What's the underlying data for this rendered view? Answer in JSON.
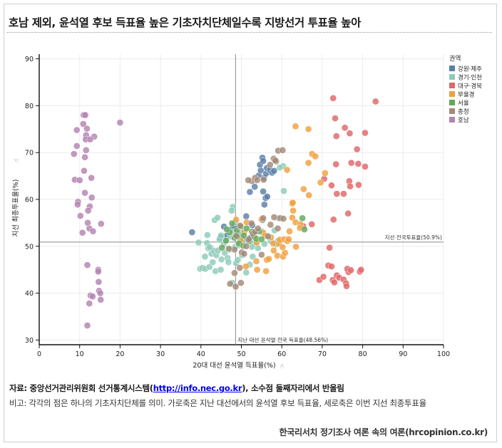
{
  "title": "호남 제외, 윤석열 후보 득표율 높은 기초자치단체일수록 지방선거 투표율 높아",
  "chart_data": {
    "type": "scatter",
    "title": "호남 제외, 윤석열 후보 득표율 높은 기초자치단체일수록 지방선거 투표율 높아",
    "xlabel": "20대 대선 윤석열 득표율(%)",
    "ylabel": "지선 최종투표율(%)",
    "xlim": [
      0,
      100
    ],
    "ylim": [
      29,
      91
    ],
    "xticks": [
      "0",
      "10",
      "20",
      "30",
      "40",
      "50",
      "60",
      "70",
      "80",
      "90",
      "100"
    ],
    "yticks": [
      "30",
      "40",
      "50",
      "60",
      "70",
      "80",
      "90"
    ],
    "grid": true,
    "legend_title": "권역",
    "legend_position": "top-right",
    "ref_lines": {
      "horizontal": {
        "value": 50.9,
        "label": "지선 전국투표율(50.9%)"
      },
      "vertical": {
        "value": 48.56,
        "label": "지난 대선 윤석열 전국 득표율(48.56%)"
      }
    },
    "series": [
      {
        "name": "강원·제주",
        "color": "#5a7fa8",
        "points": [
          [
            37.8,
            53
          ],
          [
            44.8,
            51.9
          ],
          [
            45.7,
            54.2
          ],
          [
            46.4,
            52.3
          ],
          [
            47.6,
            53.7
          ],
          [
            48.2,
            54.3
          ],
          [
            49.1,
            52.6
          ],
          [
            50.4,
            51.5
          ],
          [
            51.2,
            56.4
          ],
          [
            52.2,
            51.8
          ],
          [
            52.7,
            54.5
          ],
          [
            52.1,
            61.6
          ],
          [
            53.3,
            62.7
          ],
          [
            54.3,
            65.1
          ],
          [
            54.8,
            66.2
          ],
          [
            54.6,
            67.4
          ],
          [
            55.2,
            68.9
          ],
          [
            55.4,
            68.2
          ],
          [
            55.6,
            64.6
          ],
          [
            56.1,
            65.5
          ],
          [
            56.3,
            66.7
          ],
          [
            57.1,
            66.3
          ],
          [
            57.6,
            65.7
          ],
          [
            58.1,
            66.1
          ],
          [
            56.0,
            60.3
          ],
          [
            55.4,
            61.7
          ],
          [
            55.7,
            58.9
          ],
          [
            56.4,
            60.6
          ],
          [
            55.2,
            55.6
          ]
        ]
      },
      {
        "name": "경기·인천",
        "color": "#8ecab8",
        "points": [
          [
            39.4,
            50.8
          ],
          [
            39.8,
            45.2
          ],
          [
            40.4,
            45.4
          ],
          [
            41.0,
            47.8
          ],
          [
            41.1,
            45.2
          ],
          [
            41.6,
            52.4
          ],
          [
            41.8,
            49.6
          ],
          [
            42.1,
            45.6
          ],
          [
            42.6,
            48.4
          ],
          [
            43.1,
            49.1
          ],
          [
            43.4,
            55.6
          ],
          [
            44.1,
            56.1
          ],
          [
            43.8,
            48.1
          ],
          [
            44.2,
            49.1
          ],
          [
            44.6,
            51.4
          ],
          [
            45.1,
            47.2
          ],
          [
            45.6,
            50.4
          ],
          [
            45.9,
            48.6
          ],
          [
            46.3,
            51.2
          ],
          [
            46.6,
            47.5
          ],
          [
            47.1,
            49.3
          ],
          [
            47.4,
            52.1
          ],
          [
            47.9,
            58.4
          ],
          [
            47.6,
            57.6
          ],
          [
            48.1,
            53.1
          ],
          [
            48.4,
            49.8
          ],
          [
            48.7,
            46.4
          ],
          [
            49.1,
            47.1
          ],
          [
            49.4,
            50.2
          ],
          [
            49.8,
            52.8
          ],
          [
            50.2,
            48.1
          ],
          [
            50.6,
            51.3
          ],
          [
            51.2,
            44.4
          ],
          [
            52.1,
            46.1
          ],
          [
            52.8,
            47.8
          ],
          [
            53.3,
            50.7
          ],
          [
            54.1,
            49.6
          ],
          [
            55.0,
            53.2
          ],
          [
            55.7,
            50.5
          ],
          [
            56.4,
            52.3
          ],
          [
            57.3,
            51.1
          ],
          [
            58.2,
            53.4
          ],
          [
            58.7,
            50.4
          ],
          [
            59.0,
            51.1
          ],
          [
            59.2,
            56.0
          ],
          [
            60.5,
            61.8
          ],
          [
            60.3,
            67.1
          ],
          [
            59.5,
            66.8
          ],
          [
            45.0,
            52.3
          ],
          [
            46.8,
            46.6
          ],
          [
            43.6,
            44.7
          ],
          [
            44.9,
            45.0
          ],
          [
            42.9,
            46.6
          ],
          [
            41.5,
            50.7
          ],
          [
            42.2,
            49.8
          ],
          [
            47.8,
            42.2
          ],
          [
            48.5,
            55.1
          ],
          [
            52.6,
            49.9
          ]
        ]
      },
      {
        "name": "대구·경북",
        "color": "#e06666",
        "points": [
          [
            72.7,
            81.6
          ],
          [
            83.2,
            80.9
          ],
          [
            73.2,
            77.3
          ],
          [
            73.5,
            73.5
          ],
          [
            75.6,
            75.3
          ],
          [
            76.8,
            74.1
          ],
          [
            80.6,
            74.2
          ],
          [
            78.6,
            70.7
          ],
          [
            77.2,
            67.8
          ],
          [
            78.9,
            67.6
          ],
          [
            80.6,
            67.0
          ],
          [
            73.4,
            67.5
          ],
          [
            72.3,
            63.0
          ],
          [
            70.5,
            64.4
          ],
          [
            73.6,
            61.2
          ],
          [
            75.3,
            61.2
          ],
          [
            76.7,
            63.9
          ],
          [
            76.9,
            62.8
          ],
          [
            79.0,
            63.1
          ],
          [
            76.4,
            57.0
          ],
          [
            72.8,
            55.7
          ],
          [
            71.8,
            49.7
          ],
          [
            71.5,
            45.9
          ],
          [
            72.3,
            45.7
          ],
          [
            72.6,
            42.8
          ],
          [
            73.0,
            42.3
          ],
          [
            73.6,
            43.8
          ],
          [
            74.2,
            43.3
          ],
          [
            75.3,
            42.9
          ],
          [
            75.9,
            42.1
          ],
          [
            76.0,
            41.5
          ],
          [
            76.5,
            44.5
          ],
          [
            76.2,
            45.2
          ],
          [
            77.1,
            44.9
          ],
          [
            79.3,
            44.6
          ],
          [
            79.6,
            45.0
          ],
          [
            69.3,
            42.8
          ],
          [
            70.3,
            43.5
          ],
          [
            67.4,
            54.7
          ],
          [
            65.3,
            54.3
          ]
        ]
      },
      {
        "name": "부울경",
        "color": "#f0a040",
        "points": [
          [
            48.7,
            55.7
          ],
          [
            49.8,
            51.2
          ],
          [
            50.7,
            53.0
          ],
          [
            51.3,
            55.1
          ],
          [
            51.1,
            45.7
          ],
          [
            53.8,
            50.8
          ],
          [
            53.7,
            46.8
          ],
          [
            53.9,
            45.0
          ],
          [
            55.0,
            55.8
          ],
          [
            55.4,
            52.9
          ],
          [
            55.9,
            52.3
          ],
          [
            56.1,
            44.7
          ],
          [
            56.3,
            47.1
          ],
          [
            56.8,
            47.3
          ],
          [
            57.3,
            51.9
          ],
          [
            57.9,
            50.6
          ],
          [
            58.0,
            49.1
          ],
          [
            58.9,
            48.0
          ],
          [
            59.3,
            50.6
          ],
          [
            59.5,
            51.4
          ],
          [
            60.2,
            49.8
          ],
          [
            60.6,
            51.5
          ],
          [
            60.3,
            47.8
          ],
          [
            60.8,
            48.6
          ],
          [
            61.4,
            51.1
          ],
          [
            61.9,
            53.2
          ],
          [
            62.6,
            56.1
          ],
          [
            62.8,
            57.6
          ],
          [
            63.4,
            55.1
          ],
          [
            62.6,
            59.1
          ],
          [
            62.7,
            59.3
          ],
          [
            64.6,
            54.7
          ],
          [
            64.5,
            53.9
          ],
          [
            63.4,
            75.6
          ],
          [
            66.6,
            75.0
          ],
          [
            67.5,
            69.7
          ],
          [
            66.6,
            67.8
          ],
          [
            68.3,
            69.2
          ],
          [
            69.6,
            63.6
          ],
          [
            70.7,
            65.6
          ],
          [
            66.7,
            60.9
          ],
          [
            65.4,
            62.2
          ],
          [
            61.3,
            66.3
          ],
          [
            61.7,
            51.5
          ],
          [
            63.5,
            49.9
          ]
        ]
      },
      {
        "name": "서울",
        "color": "#62a85a",
        "points": [
          [
            45.2,
            49.7
          ],
          [
            46.2,
            51.2
          ],
          [
            47.1,
            53.0
          ],
          [
            47.7,
            54.9
          ],
          [
            48.3,
            51.8
          ],
          [
            48.9,
            53.4
          ],
          [
            49.4,
            50.6
          ],
          [
            49.9,
            54.2
          ],
          [
            50.6,
            52.3
          ],
          [
            51.3,
            53.8
          ],
          [
            51.9,
            51.1
          ],
          [
            52.6,
            53.1
          ],
          [
            53.1,
            52.2
          ],
          [
            53.7,
            51.6
          ],
          [
            54.4,
            53.2
          ],
          [
            55.0,
            51.5
          ],
          [
            46.4,
            53.6
          ],
          [
            49.0,
            52.1
          ],
          [
            50.5,
            50.1
          ],
          [
            65.6,
            53.6
          ],
          [
            65.1,
            56.0
          ]
        ]
      },
      {
        "name": "충청",
        "color": "#a48a78",
        "points": [
          [
            47.2,
            42.0
          ],
          [
            48.6,
            41.4
          ],
          [
            48.3,
            44.3
          ],
          [
            49.6,
            45.4
          ],
          [
            49.9,
            42.2
          ],
          [
            50.1,
            48.7
          ],
          [
            50.7,
            48.4
          ],
          [
            51.2,
            50.0
          ],
          [
            51.8,
            51.5
          ],
          [
            52.5,
            54.9
          ],
          [
            52.9,
            52.7
          ],
          [
            53.4,
            53.1
          ],
          [
            54.1,
            53.8
          ],
          [
            55.4,
            56.0
          ],
          [
            56.6,
            52.1
          ],
          [
            57.2,
            54.6
          ],
          [
            58.1,
            56.2
          ],
          [
            59.0,
            53.8
          ],
          [
            59.6,
            56.0
          ],
          [
            60.4,
            55.9
          ],
          [
            52.6,
            63.9
          ],
          [
            51.7,
            64.1
          ],
          [
            53.4,
            64.6
          ],
          [
            53.9,
            64.1
          ],
          [
            55.5,
            64.2
          ],
          [
            57.1,
            67.4
          ],
          [
            58.0,
            68.7
          ],
          [
            58.6,
            68.1
          ],
          [
            59.1,
            70.4
          ],
          [
            60.2,
            70.5
          ],
          [
            58.4,
            68.3
          ],
          [
            48.7,
            52.2
          ],
          [
            48.3,
            49.3
          ],
          [
            46.9,
            49.5
          ],
          [
            49.7,
            54.4
          ],
          [
            55.0,
            48.2
          ]
        ]
      },
      {
        "name": "호남",
        "color": "#b583b1",
        "points": [
          [
            11.0,
            78.0
          ],
          [
            11.4,
            78.0
          ],
          [
            20.0,
            76.4
          ],
          [
            10.9,
            76.1
          ],
          [
            11.8,
            75.1
          ],
          [
            9.3,
            74.8
          ],
          [
            11.6,
            73.7
          ],
          [
            13.6,
            73.4
          ],
          [
            11.5,
            72.8
          ],
          [
            12.6,
            72.8
          ],
          [
            9.3,
            71.4
          ],
          [
            8.6,
            69.7
          ],
          [
            11.6,
            70.5
          ],
          [
            11.3,
            69.0
          ],
          [
            11.1,
            66.1
          ],
          [
            8.8,
            64.2
          ],
          [
            10.0,
            64.1
          ],
          [
            12.9,
            64.6
          ],
          [
            11.3,
            61.4
          ],
          [
            13.0,
            60.4
          ],
          [
            9.6,
            59.5
          ],
          [
            12.5,
            58.5
          ],
          [
            9.5,
            58.9
          ],
          [
            12.1,
            57.6
          ],
          [
            10.2,
            56.5
          ],
          [
            12.0,
            55.0
          ],
          [
            15.3,
            54.8
          ],
          [
            12.4,
            53.8
          ],
          [
            10.7,
            52.9
          ],
          [
            13.3,
            53.2
          ],
          [
            11.9,
            46.0
          ],
          [
            14.6,
            45.0
          ],
          [
            14.6,
            44.6
          ],
          [
            14.7,
            42.4
          ],
          [
            12.7,
            39.5
          ],
          [
            13.2,
            39.3
          ],
          [
            14.8,
            40.5
          ],
          [
            15.1,
            40.0
          ],
          [
            15.2,
            38.6
          ],
          [
            12.4,
            37.8
          ],
          [
            11.9,
            33.1
          ]
        ]
      }
    ]
  },
  "footer": {
    "source_prefix": "자료: 중앙선거관리위원회 선거통계시스템(",
    "source_link": "http://info.nec.go.kr",
    "source_suffix": "), 소수점 둘째자리에서 반올림",
    "note": "비고: 각각의 점은 하나의 기초자치단체를 의미. 가로축은 지난 대선에서의 윤석열 후보 득표율, 세로축은 이번 지선 최종투표율",
    "credit": "한국리서치 정기조사 여론 속의 여론(hrcopinion.co.kr)"
  },
  "icons": {
    "axis_cursor": "pointer-hand-icon"
  }
}
